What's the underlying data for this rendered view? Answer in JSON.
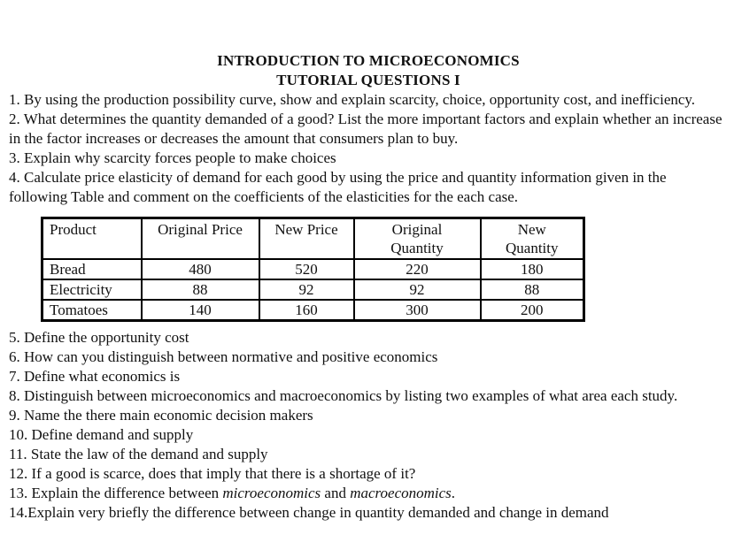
{
  "doc": {
    "title": "INTRODUCTION TO MICROECONOMICS",
    "subtitle": "TUTORIAL QUESTIONS I"
  },
  "questions_before": [
    "1. By using the production possibility curve, show and explain scarcity, choice, opportunity cost, and inefficiency.",
    "2. What determines the quantity demanded of a good? List the more important factors and explain whether an increase in the factor increases or decreases the amount that consumers plan to buy.",
    "3. Explain why scarcity forces people to make choices",
    "4. Calculate price elasticity of demand for each good by using the price and quantity information given in the following Table and comment on the coefficients of the elasticities for the each case."
  ],
  "table": {
    "headers": [
      {
        "text": "Product"
      },
      {
        "text": "Original Price"
      },
      {
        "text": "New Price"
      },
      {
        "line1": "Original",
        "line2": "Quantity"
      },
      {
        "line1": "New",
        "line2": "Quantity"
      }
    ],
    "rows": [
      [
        "Bread",
        "480",
        "520",
        "220",
        "180"
      ],
      [
        "Electricity",
        "88",
        "92",
        "92",
        "88"
      ],
      [
        "Tomatoes",
        "140",
        "160",
        "300",
        "200"
      ]
    ]
  },
  "questions_after": [
    "5. Define the opportunity cost",
    "6. How can you distinguish between normative and positive economics",
    "7. Define what economics is",
    "8. Distinguish between microeconomics and macroeconomics by listing two examples of what area each study.",
    "9. Name the there main economic decision makers",
    "10. Define demand and supply",
    "11. State the law of the demand and supply",
    "12. If a good is scarce, does that imply that there is a shortage of it?",
    {
      "prefix": "13. Explain the difference between ",
      "italic1": "microeconomics",
      "mid": " and ",
      "italic2": "macroeconomics",
      "suffix": "."
    },
    "14.Explain very briefly the difference between change in quantity demanded and change in demand"
  ]
}
